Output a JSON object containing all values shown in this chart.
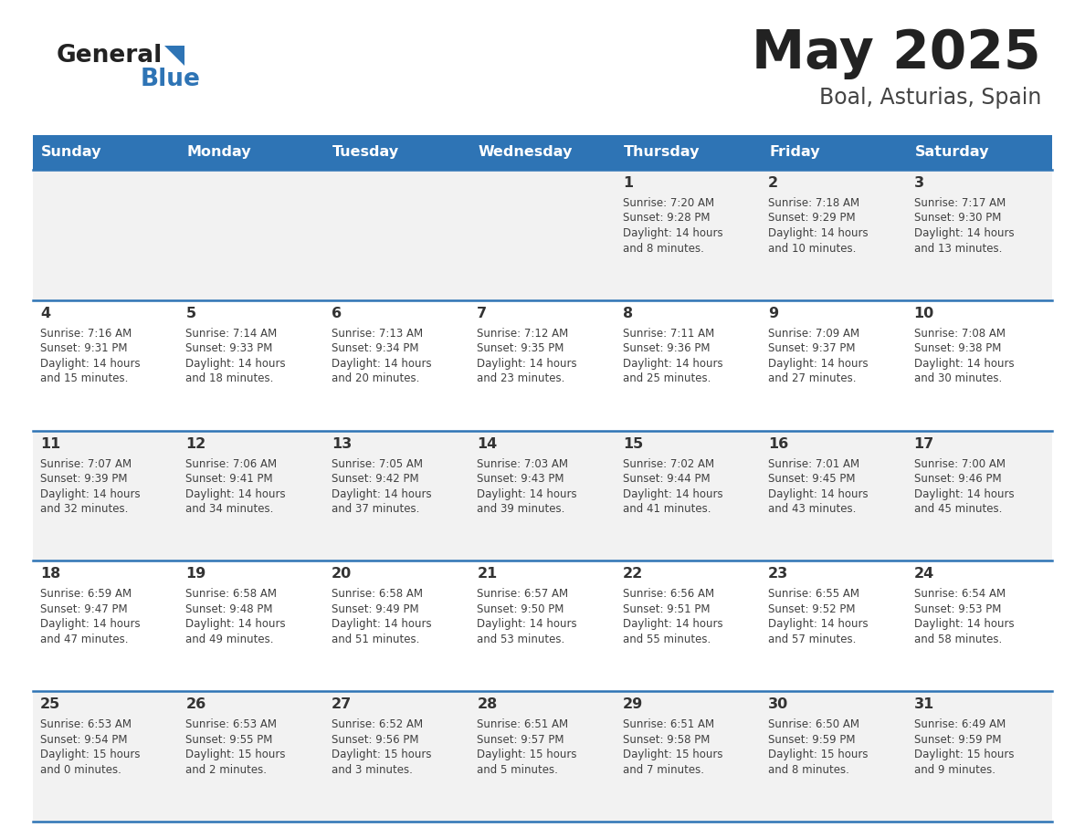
{
  "title": "May 2025",
  "subtitle": "Boal, Asturias, Spain",
  "days_of_week": [
    "Sunday",
    "Monday",
    "Tuesday",
    "Wednesday",
    "Thursday",
    "Friday",
    "Saturday"
  ],
  "header_bg": "#2E74B5",
  "header_text": "#FFFFFF",
  "row_bg_odd": "#F2F2F2",
  "row_bg_even": "#FFFFFF",
  "cell_text_color": "#404040",
  "day_num_color": "#333333",
  "divider_color": "#2E74B5",
  "title_color": "#222222",
  "subtitle_color": "#444444",
  "logo_text_color": "#222222",
  "logo_blue_color": "#2E74B5",
  "calendar_data": [
    [
      {
        "day": null,
        "sunrise": null,
        "sunset": null,
        "daylight": null
      },
      {
        "day": null,
        "sunrise": null,
        "sunset": null,
        "daylight": null
      },
      {
        "day": null,
        "sunrise": null,
        "sunset": null,
        "daylight": null
      },
      {
        "day": null,
        "sunrise": null,
        "sunset": null,
        "daylight": null
      },
      {
        "day": 1,
        "sunrise": "7:20 AM",
        "sunset": "9:28 PM",
        "daylight": "14 hours\nand 8 minutes."
      },
      {
        "day": 2,
        "sunrise": "7:18 AM",
        "sunset": "9:29 PM",
        "daylight": "14 hours\nand 10 minutes."
      },
      {
        "day": 3,
        "sunrise": "7:17 AM",
        "sunset": "9:30 PM",
        "daylight": "14 hours\nand 13 minutes."
      }
    ],
    [
      {
        "day": 4,
        "sunrise": "7:16 AM",
        "sunset": "9:31 PM",
        "daylight": "14 hours\nand 15 minutes."
      },
      {
        "day": 5,
        "sunrise": "7:14 AM",
        "sunset": "9:33 PM",
        "daylight": "14 hours\nand 18 minutes."
      },
      {
        "day": 6,
        "sunrise": "7:13 AM",
        "sunset": "9:34 PM",
        "daylight": "14 hours\nand 20 minutes."
      },
      {
        "day": 7,
        "sunrise": "7:12 AM",
        "sunset": "9:35 PM",
        "daylight": "14 hours\nand 23 minutes."
      },
      {
        "day": 8,
        "sunrise": "7:11 AM",
        "sunset": "9:36 PM",
        "daylight": "14 hours\nand 25 minutes."
      },
      {
        "day": 9,
        "sunrise": "7:09 AM",
        "sunset": "9:37 PM",
        "daylight": "14 hours\nand 27 minutes."
      },
      {
        "day": 10,
        "sunrise": "7:08 AM",
        "sunset": "9:38 PM",
        "daylight": "14 hours\nand 30 minutes."
      }
    ],
    [
      {
        "day": 11,
        "sunrise": "7:07 AM",
        "sunset": "9:39 PM",
        "daylight": "14 hours\nand 32 minutes."
      },
      {
        "day": 12,
        "sunrise": "7:06 AM",
        "sunset": "9:41 PM",
        "daylight": "14 hours\nand 34 minutes."
      },
      {
        "day": 13,
        "sunrise": "7:05 AM",
        "sunset": "9:42 PM",
        "daylight": "14 hours\nand 37 minutes."
      },
      {
        "day": 14,
        "sunrise": "7:03 AM",
        "sunset": "9:43 PM",
        "daylight": "14 hours\nand 39 minutes."
      },
      {
        "day": 15,
        "sunrise": "7:02 AM",
        "sunset": "9:44 PM",
        "daylight": "14 hours\nand 41 minutes."
      },
      {
        "day": 16,
        "sunrise": "7:01 AM",
        "sunset": "9:45 PM",
        "daylight": "14 hours\nand 43 minutes."
      },
      {
        "day": 17,
        "sunrise": "7:00 AM",
        "sunset": "9:46 PM",
        "daylight": "14 hours\nand 45 minutes."
      }
    ],
    [
      {
        "day": 18,
        "sunrise": "6:59 AM",
        "sunset": "9:47 PM",
        "daylight": "14 hours\nand 47 minutes."
      },
      {
        "day": 19,
        "sunrise": "6:58 AM",
        "sunset": "9:48 PM",
        "daylight": "14 hours\nand 49 minutes."
      },
      {
        "day": 20,
        "sunrise": "6:58 AM",
        "sunset": "9:49 PM",
        "daylight": "14 hours\nand 51 minutes."
      },
      {
        "day": 21,
        "sunrise": "6:57 AM",
        "sunset": "9:50 PM",
        "daylight": "14 hours\nand 53 minutes."
      },
      {
        "day": 22,
        "sunrise": "6:56 AM",
        "sunset": "9:51 PM",
        "daylight": "14 hours\nand 55 minutes."
      },
      {
        "day": 23,
        "sunrise": "6:55 AM",
        "sunset": "9:52 PM",
        "daylight": "14 hours\nand 57 minutes."
      },
      {
        "day": 24,
        "sunrise": "6:54 AM",
        "sunset": "9:53 PM",
        "daylight": "14 hours\nand 58 minutes."
      }
    ],
    [
      {
        "day": 25,
        "sunrise": "6:53 AM",
        "sunset": "9:54 PM",
        "daylight": "15 hours\nand 0 minutes."
      },
      {
        "day": 26,
        "sunrise": "6:53 AM",
        "sunset": "9:55 PM",
        "daylight": "15 hours\nand 2 minutes."
      },
      {
        "day": 27,
        "sunrise": "6:52 AM",
        "sunset": "9:56 PM",
        "daylight": "15 hours\nand 3 minutes."
      },
      {
        "day": 28,
        "sunrise": "6:51 AM",
        "sunset": "9:57 PM",
        "daylight": "15 hours\nand 5 minutes."
      },
      {
        "day": 29,
        "sunrise": "6:51 AM",
        "sunset": "9:58 PM",
        "daylight": "15 hours\nand 7 minutes."
      },
      {
        "day": 30,
        "sunrise": "6:50 AM",
        "sunset": "9:59 PM",
        "daylight": "15 hours\nand 8 minutes."
      },
      {
        "day": 31,
        "sunrise": "6:49 AM",
        "sunset": "9:59 PM",
        "daylight": "15 hours\nand 9 minutes."
      }
    ]
  ]
}
